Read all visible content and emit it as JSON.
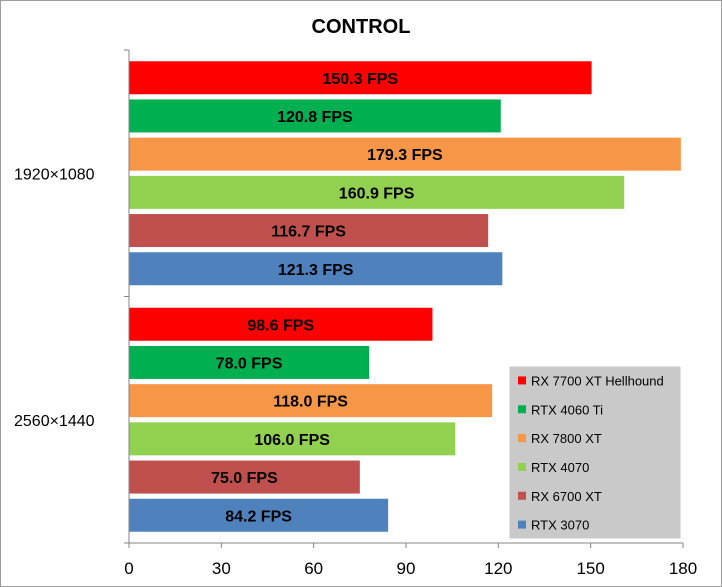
{
  "chart_data": {
    "type": "bar",
    "orientation": "horizontal",
    "title": "CONTROL",
    "categories": [
      "1920×1080",
      "2560×1440"
    ],
    "xlim": [
      0,
      180
    ],
    "xticks": [
      0,
      30,
      60,
      90,
      120,
      150,
      180
    ],
    "grid": false,
    "legend_position": "bottom-right",
    "value_suffix": " FPS",
    "series": [
      {
        "name": "RX 7700 XT Hellhound",
        "color": "#ff0000",
        "values": [
          150.3,
          98.6
        ],
        "labels": [
          "150.3 FPS",
          "98.6 FPS"
        ]
      },
      {
        "name": "RTX 4060 Ti",
        "color": "#00b050",
        "values": [
          120.8,
          78.0
        ],
        "labels": [
          "120.8 FPS",
          "78.0 FPS"
        ]
      },
      {
        "name": "RX 7800 XT",
        "color": "#f79646",
        "values": [
          179.3,
          118.0
        ],
        "labels": [
          "179.3 FPS",
          "118.0 FPS"
        ]
      },
      {
        "name": "RTX 4070",
        "color": "#92d050",
        "values": [
          160.9,
          106.0
        ],
        "labels": [
          "160.9 FPS",
          "106.0 FPS"
        ]
      },
      {
        "name": "RX 6700 XT",
        "color": "#c0504d",
        "values": [
          116.7,
          75.0
        ],
        "labels": [
          "116.7 FPS",
          "75.0 FPS"
        ]
      },
      {
        "name": "RTX 3070",
        "color": "#4f81bd",
        "values": [
          121.3,
          84.2
        ],
        "labels": [
          "121.3 FPS",
          "84.2 FPS"
        ]
      }
    ]
  }
}
